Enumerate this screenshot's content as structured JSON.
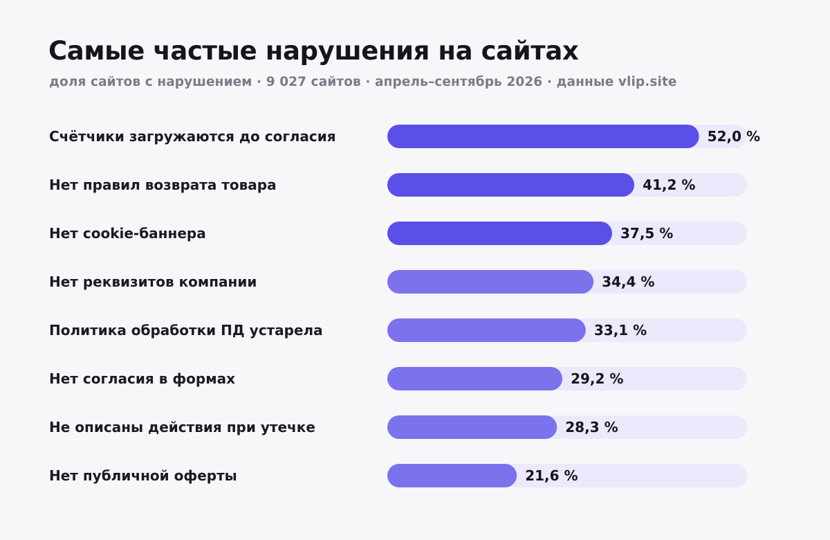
{
  "chart_data": {
    "type": "bar",
    "orientation": "horizontal",
    "title": "Самые частые нарушения на сайтах",
    "subtitle": "доля сайтов с нарушением · 9 027 сайтов · апрель–сентябрь 2026 · данные vlip.site",
    "categories": [
      "Счётчики загружаются до согласия",
      "Нет правил возврата товара",
      "Нет cookie-баннера",
      "Нет реквизитов компании",
      "Политика обработки ПД устарела",
      "Нет согласия в формах",
      "Не описаны действия при утечке",
      "Нет публичной оферты"
    ],
    "values": [
      52.0,
      41.2,
      37.5,
      34.4,
      33.1,
      29.2,
      28.3,
      21.6
    ],
    "value_labels": [
      "52,0 %",
      "41,2 %",
      "37,5 %",
      "34,4 %",
      "33,1 %",
      "29,2 %",
      "28,3 %",
      "21,6 %"
    ],
    "xlim": [
      0,
      60
    ],
    "grid": false,
    "legend": "none"
  },
  "colors": {
    "background": "#f7f7fa",
    "bar_dark": "#5a4fe6",
    "bar_light": "#7b72ec",
    "track": "#ebe9fb"
  }
}
